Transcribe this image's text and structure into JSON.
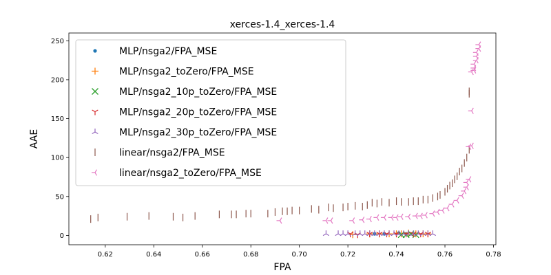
{
  "chart_data": {
    "type": "scatter",
    "title": "xerces-1.4_xerces-1.4",
    "xlabel": "FPA",
    "ylabel": "AAE",
    "xlim": [
      0.605,
      0.781
    ],
    "ylim": [
      -12,
      260
    ],
    "xticks": [
      "0.62",
      "0.64",
      "0.66",
      "0.68",
      "0.70",
      "0.72",
      "0.74",
      "0.76",
      "0.78"
    ],
    "yticks": [
      "0",
      "50",
      "100",
      "150",
      "200",
      "250"
    ],
    "legend_position": "upper-left",
    "series": [
      {
        "name": "MLP/nsga2/FPA_MSE",
        "marker": "point",
        "color": "#1f77b4",
        "points": [
          [
            0.731,
            2
          ],
          [
            0.735,
            2
          ],
          [
            0.741,
            3
          ],
          [
            0.744,
            2
          ]
        ]
      },
      {
        "name": "MLP/nsga2_toZero/FPA_MSE",
        "marker": "plus",
        "color": "#ff7f0e",
        "points": [
          [
            0.722,
            1
          ],
          [
            0.729,
            2
          ],
          [
            0.733,
            2
          ],
          [
            0.737,
            2
          ],
          [
            0.74,
            2
          ],
          [
            0.742,
            2
          ],
          [
            0.745,
            3
          ],
          [
            0.748,
            2
          ],
          [
            0.751,
            2
          ],
          [
            0.753,
            2
          ]
        ]
      },
      {
        "name": "MLP/nsga2_10p_toZero/FPA_MSE",
        "marker": "x",
        "color": "#2ca02c",
        "points": [
          [
            0.742,
            1
          ],
          [
            0.744,
            1
          ],
          [
            0.746,
            2
          ],
          [
            0.748,
            1
          ]
        ]
      },
      {
        "name": "MLP/nsga2_20p_toZero/FPA_MSE",
        "marker": "tri-down",
        "color": "#d62728",
        "points": [
          [
            0.721,
            2
          ],
          [
            0.724,
            1
          ],
          [
            0.729,
            2
          ],
          [
            0.733,
            2
          ],
          [
            0.736,
            2
          ],
          [
            0.74,
            2
          ],
          [
            0.744,
            2
          ],
          [
            0.747,
            2
          ],
          [
            0.75,
            2
          ],
          [
            0.753,
            2
          ]
        ]
      },
      {
        "name": "MLP/nsga2_30p_toZero/FPA_MSE",
        "marker": "tri-up",
        "color": "#9467bd",
        "points": [
          [
            0.711,
            2
          ],
          [
            0.716,
            2
          ],
          [
            0.718,
            2
          ],
          [
            0.72,
            2
          ],
          [
            0.723,
            2
          ],
          [
            0.725,
            2
          ],
          [
            0.727,
            2
          ],
          [
            0.729,
            2
          ],
          [
            0.731,
            2
          ],
          [
            0.733,
            2
          ],
          [
            0.735,
            2
          ],
          [
            0.737,
            2
          ],
          [
            0.739,
            2
          ],
          [
            0.741,
            2
          ],
          [
            0.743,
            2
          ],
          [
            0.745,
            2
          ],
          [
            0.747,
            2
          ],
          [
            0.749,
            2
          ],
          [
            0.751,
            2
          ],
          [
            0.753,
            2
          ],
          [
            0.755,
            2
          ]
        ]
      },
      {
        "name": "linear/nsga2/FPA_MSE",
        "marker": "vline",
        "color": "#8c564b",
        "points": [
          [
            0.614,
            21
          ],
          [
            0.617,
            23
          ],
          [
            0.629,
            24
          ],
          [
            0.638,
            25
          ],
          [
            0.648,
            24
          ],
          [
            0.652,
            23
          ],
          [
            0.657,
            25
          ],
          [
            0.667,
            27
          ],
          [
            0.672,
            27
          ],
          [
            0.674,
            27
          ],
          [
            0.678,
            28
          ],
          [
            0.68,
            28
          ],
          [
            0.687,
            28
          ],
          [
            0.69,
            30
          ],
          [
            0.693,
            31
          ],
          [
            0.695,
            31
          ],
          [
            0.697,
            32
          ],
          [
            0.7,
            32
          ],
          [
            0.705,
            34
          ],
          [
            0.708,
            33
          ],
          [
            0.712,
            36
          ],
          [
            0.714,
            35
          ],
          [
            0.718,
            36
          ],
          [
            0.72,
            37
          ],
          [
            0.723,
            38
          ],
          [
            0.726,
            37
          ],
          [
            0.728,
            39
          ],
          [
            0.73,
            42
          ],
          [
            0.732,
            41
          ],
          [
            0.734,
            43
          ],
          [
            0.737,
            42
          ],
          [
            0.74,
            44
          ],
          [
            0.742,
            43
          ],
          [
            0.745,
            43
          ],
          [
            0.747,
            44
          ],
          [
            0.749,
            44
          ],
          [
            0.751,
            46
          ],
          [
            0.753,
            46
          ],
          [
            0.755,
            48
          ],
          [
            0.757,
            50
          ],
          [
            0.758,
            52
          ],
          [
            0.76,
            56
          ],
          [
            0.761,
            60
          ],
          [
            0.762,
            64
          ],
          [
            0.763,
            67
          ],
          [
            0.764,
            72
          ],
          [
            0.765,
            76
          ],
          [
            0.766,
            82
          ],
          [
            0.767,
            86
          ],
          [
            0.768,
            93
          ],
          [
            0.769,
            100
          ],
          [
            0.77,
            110
          ],
          [
            0.77,
            182
          ],
          [
            0.77,
            185
          ]
        ]
      },
      {
        "name": "linear/nsga2_toZero/FPA_MSE",
        "marker": "tri-left",
        "color": "#e377c2",
        "points": [
          [
            0.692,
            19
          ],
          [
            0.711,
            19
          ],
          [
            0.713,
            19
          ],
          [
            0.722,
            19
          ],
          [
            0.726,
            20
          ],
          [
            0.729,
            21
          ],
          [
            0.732,
            23
          ],
          [
            0.735,
            23
          ],
          [
            0.738,
            23
          ],
          [
            0.74,
            23
          ],
          [
            0.742,
            24
          ],
          [
            0.745,
            24
          ],
          [
            0.748,
            25
          ],
          [
            0.75,
            25
          ],
          [
            0.752,
            26
          ],
          [
            0.755,
            28
          ],
          [
            0.757,
            30
          ],
          [
            0.759,
            32
          ],
          [
            0.761,
            35
          ],
          [
            0.763,
            40
          ],
          [
            0.765,
            45
          ],
          [
            0.767,
            51
          ],
          [
            0.768,
            57
          ],
          [
            0.769,
            62
          ],
          [
            0.769,
            68
          ],
          [
            0.77,
            72
          ],
          [
            0.77,
            114
          ],
          [
            0.771,
            115
          ],
          [
            0.771,
            160
          ],
          [
            0.771,
            210
          ],
          [
            0.772,
            212
          ],
          [
            0.772,
            215
          ],
          [
            0.772,
            220
          ],
          [
            0.773,
            225
          ],
          [
            0.773,
            230
          ],
          [
            0.773,
            235
          ],
          [
            0.774,
            240
          ],
          [
            0.774,
            245
          ]
        ]
      }
    ]
  }
}
